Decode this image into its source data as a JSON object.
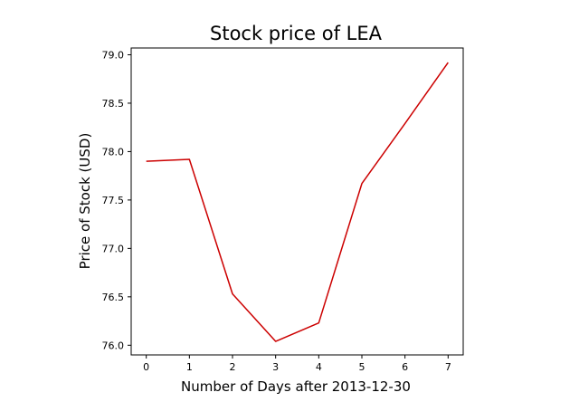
{
  "chart_data": {
    "type": "line",
    "title": "Stock price of LEA",
    "xlabel": "Number of Days after 2013-12-30",
    "ylabel": "Price of Stock (USD)",
    "x": [
      0,
      1,
      2,
      3,
      4,
      5,
      6,
      7
    ],
    "series": [
      {
        "values": [
          77.9,
          77.92,
          76.53,
          76.04,
          76.23,
          77.67,
          78.29,
          78.92
        ],
        "color": "#cc0000"
      }
    ],
    "xticks": [
      0,
      1,
      2,
      3,
      4,
      5,
      6,
      7
    ],
    "xtick_labels": [
      "0",
      "1",
      "2",
      "3",
      "4",
      "5",
      "6",
      "7"
    ],
    "yticks": [
      76.0,
      76.5,
      77.0,
      77.5,
      78.0,
      78.5,
      79.0
    ],
    "ytick_labels": [
      "76.0",
      "76.5",
      "77.0",
      "77.5",
      "78.0",
      "78.5",
      "79.0"
    ],
    "xlim": [
      -0.35,
      7.35
    ],
    "ylim": [
      75.9,
      79.07
    ],
    "grid": false,
    "legend": false
  }
}
